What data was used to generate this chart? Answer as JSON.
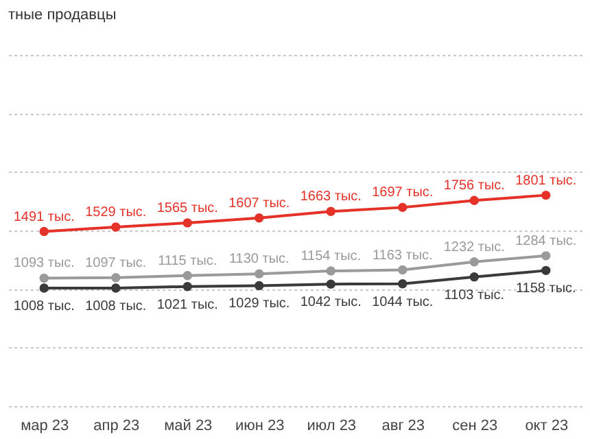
{
  "chart_data": {
    "type": "line",
    "annotations": [
      "тные продавцы"
    ],
    "categories": [
      "мар 23",
      "апр 23",
      "май 23",
      "июн 23",
      "июл 23",
      "авг 23",
      "сен 23",
      "окт 23"
    ],
    "series": [
      {
        "color": "#e53229",
        "values": [
          1491,
          1529,
          1565,
          1607,
          1663,
          1697,
          1756,
          1801
        ],
        "value_labels": [
          "1491 тыс.",
          "1529 тыс.",
          "1565 тыс.",
          "1607 тыс.",
          "1663 тыс.",
          "1697 тыс.",
          "1756 тыс.",
          "1801 тыс."
        ]
      },
      {
        "color": "#9a9a9a",
        "values": [
          1093,
          1097,
          1115,
          1130,
          1154,
          1163,
          1232,
          1284
        ],
        "value_labels": [
          "1093 тыс.",
          "1097 тыс.",
          "1115 тыс.",
          "1130 тыс.",
          "1154 тыс.",
          "1163 тыс.",
          "1232 тыс.",
          "1284 тыс."
        ]
      },
      {
        "color": "#3a3a3a",
        "values": [
          1008,
          1008,
          1021,
          1029,
          1042,
          1044,
          1103,
          1158
        ],
        "value_labels": [
          "1008 тыс.",
          "1008 тыс.",
          "1021 тыс.",
          "1029 тыс.",
          "1042 тыс.",
          "1044 тыс.",
          "1103 тыс.",
          "1158 тыс."
        ]
      }
    ],
    "ylim": [
      0,
      3000
    ],
    "yticks": [
      {
        "value": 0,
        "label": null
      },
      {
        "value": 500,
        "label": null
      },
      {
        "value": 1000,
        "label": null
      },
      {
        "value": 1500,
        "label": null
      },
      {
        "value": 2000,
        "label": null
      },
      {
        "value": 2500,
        "label": null
      },
      {
        "value": 3000,
        "label": null
      }
    ],
    "tick_labels": "x",
    "grid": "y",
    "marker": "circle",
    "line_style": "solid"
  }
}
